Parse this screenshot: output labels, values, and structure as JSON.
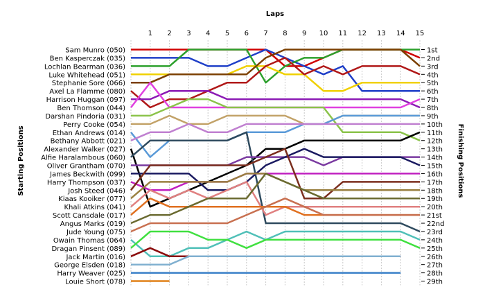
{
  "chart_data": {
    "type": "line",
    "title": "",
    "xlabel": "Laps",
    "ylabel_left": "Starting Positions",
    "ylabel_right": "Finishing Positions",
    "x_ticks": [
      "1",
      "2",
      "3",
      "4",
      "5",
      "6",
      "7",
      "8",
      "9",
      "10",
      "11",
      "12",
      "13",
      "14",
      "15"
    ],
    "drivers": [
      "Sam Munro (050)",
      "Ben Kasperczak (035)",
      "Lochlan Bearman (036)",
      "Luke Whitehead (051)",
      "Stephanie Sore (066)",
      "Axel La Flamme (080)",
      "Harrison Huggan (097)",
      "Ben Thomson (044)",
      "Darshan Pindoria (031)",
      "Perry Cooke (054)",
      "Ethan Andrews (014)",
      "Bethany Abbott (021)",
      "Alexander Walker (027)",
      "Alfie Haralambous (060)",
      "Oliver Grantham (070)",
      "James Beckwith (099)",
      "Harry Thompson (037)",
      "Josh Steed (046)",
      "Kiaas Kooiker (077)",
      "Khali Atkins (041)",
      "Scott Cansdale (017)",
      "Angus Marks (019)",
      "Jude Young (075)",
      "Owain Thomas (064)",
      "Dragan Pinsent (089)",
      "Jack Martin (016)",
      "George Elsden (018)",
      "Harry Weaver (025)",
      "Louie Short (078)"
    ],
    "finishing_positions": [
      "1st",
      "2nd",
      "3rd",
      "4th",
      "5th",
      "6th",
      "7th",
      "8th",
      "9th",
      "10th",
      "11th",
      "12th",
      "13th",
      "14th",
      "15th",
      "16th",
      "17th",
      "18th",
      "19th",
      "20th",
      "21st",
      "22nd",
      "23rd",
      "24th",
      "25th",
      "26th",
      "27th",
      "28th",
      "29th"
    ],
    "series": [
      {
        "color": "#d00000",
        "values": [
          1,
          1,
          1,
          1,
          1,
          1,
          1,
          3,
          3,
          2,
          1,
          1,
          1,
          1,
          2
        ]
      },
      {
        "color": "#1f3fc8",
        "values": [
          2,
          2,
          2,
          3,
          3,
          2,
          1,
          2,
          3,
          4,
          3,
          6,
          6,
          6,
          6
        ]
      },
      {
        "color": "#2ca02c",
        "values": [
          3,
          3,
          1,
          1,
          1,
          1,
          5,
          3,
          2,
          2,
          1,
          1,
          1,
          1,
          1
        ]
      },
      {
        "color": "#f0d000",
        "values": [
          4,
          4,
          4,
          4,
          4,
          3,
          3,
          4,
          4,
          6,
          6,
          5,
          5,
          5,
          5
        ]
      },
      {
        "color": "#7b3f00",
        "values": [
          5,
          4,
          4,
          4,
          4,
          4,
          2,
          1,
          1,
          1,
          1,
          1,
          1,
          1,
          3
        ]
      },
      {
        "color": "#b01818",
        "values": [
          8,
          7,
          7,
          6,
          5,
          5,
          3,
          2,
          4,
          3,
          4,
          3,
          3,
          3,
          4
        ]
      },
      {
        "color": "#8b1ab4",
        "values": [
          7,
          6,
          6,
          6,
          7,
          7,
          7,
          7,
          7,
          7,
          7,
          7,
          7,
          7,
          8
        ]
      },
      {
        "color": "#e040e0",
        "values": [
          5,
          8,
          8,
          8,
          8,
          8,
          8,
          8,
          8,
          8,
          8,
          8,
          8,
          8,
          7
        ]
      },
      {
        "color": "#8bc34a",
        "values": [
          9,
          8,
          7,
          7,
          8,
          8,
          8,
          8,
          8,
          8,
          11,
          11,
          11,
          11,
          12
        ]
      },
      {
        "color": "#c2a268",
        "values": [
          10,
          9,
          10,
          10,
          9,
          9,
          9,
          9,
          10,
          10,
          9,
          9,
          9,
          9,
          9
        ]
      },
      {
        "color": "#5a9ad8",
        "values": [
          14,
          12,
          12,
          12,
          12,
          11,
          11,
          11,
          10,
          10,
          9,
          9,
          9,
          9,
          9
        ]
      },
      {
        "color": "#c080d0",
        "values": [
          11,
          11,
          10,
          11,
          11,
          10,
          10,
          10,
          10,
          10,
          10,
          10,
          10,
          10,
          10
        ]
      },
      {
        "color": "#000000",
        "values": [
          20,
          19,
          18,
          17,
          16,
          15,
          13,
          13,
          12,
          12,
          12,
          12,
          12,
          12,
          11
        ]
      },
      {
        "color": "#2e4a5e",
        "values": [
          12,
          12,
          12,
          12,
          12,
          11,
          22,
          22,
          22,
          22,
          22,
          22,
          22,
          22,
          23
        ]
      },
      {
        "color": "#7a3aa0",
        "values": [
          15,
          15,
          15,
          15,
          15,
          14,
          14,
          14,
          14,
          15,
          14,
          14,
          14,
          14,
          14
        ]
      },
      {
        "color": "#1a1a60",
        "values": [
          16,
          16,
          16,
          18,
          18,
          17,
          15,
          14,
          13,
          14,
          14,
          14,
          14,
          14,
          15
        ]
      },
      {
        "color": "#c020c0",
        "values": [
          18,
          18,
          17,
          17,
          17,
          16,
          16,
          16,
          16,
          16,
          16,
          16,
          16,
          16,
          16
        ]
      },
      {
        "color": "#7b2e1e",
        "values": [
          15,
          15,
          15,
          15,
          15,
          15,
          14,
          13,
          19,
          19,
          17,
          17,
          17,
          17,
          17
        ]
      },
      {
        "color": "#9a8040",
        "values": [
          17,
          17,
          17,
          17,
          17,
          16,
          16,
          17,
          18,
          18,
          18,
          18,
          18,
          18,
          18
        ]
      },
      {
        "color": "#e08080",
        "values": [
          18,
          19,
          18,
          19,
          18,
          17,
          21,
          20,
          20,
          20,
          20,
          20,
          20,
          20,
          20
        ]
      },
      {
        "color": "#e07020",
        "values": [
          19,
          20,
          20,
          20,
          20,
          20,
          20,
          20,
          21,
          21,
          21,
          21,
          21,
          21,
          21
        ]
      },
      {
        "color": "#6a6a30",
        "values": [
          21,
          21,
          20,
          19,
          19,
          19,
          16,
          17,
          18,
          19,
          19,
          19,
          19,
          19,
          19
        ]
      },
      {
        "color": "#c87050",
        "values": [
          22,
          22,
          22,
          22,
          22,
          21,
          20,
          19,
          20,
          21,
          21,
          21,
          21,
          21,
          21
        ]
      },
      {
        "color": "#50c0b8",
        "values": [
          26,
          26,
          25,
          25,
          24,
          23,
          24,
          23,
          23,
          23,
          23,
          23,
          23,
          23,
          24
        ]
      },
      {
        "color": "#40e040",
        "values": [
          23,
          23,
          23,
          24,
          24,
          25,
          24,
          24,
          24,
          24,
          24,
          24,
          24,
          24,
          25
        ]
      },
      {
        "color": "#8a0a0a",
        "values": [
          25,
          26,
          26,
          26,
          26,
          26,
          26,
          26,
          26,
          26,
          26,
          26,
          26,
          26
        ]
      },
      {
        "color": "#80b0d0",
        "values": [
          27,
          27,
          26,
          26,
          26,
          26,
          26,
          26,
          26,
          26,
          26,
          26,
          26,
          26
        ]
      },
      {
        "color": "#3a80c8",
        "values": [
          28,
          28,
          28,
          28,
          28,
          28,
          28,
          28,
          28,
          28,
          28,
          28,
          28,
          28
        ]
      },
      {
        "color": "#e08018",
        "values": [
          29,
          29
        ]
      }
    ]
  }
}
